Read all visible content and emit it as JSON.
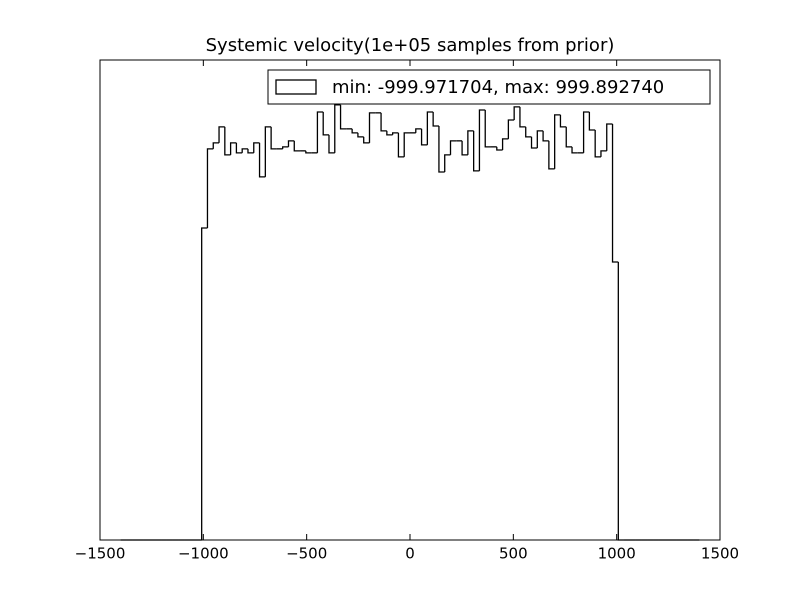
{
  "chart_data": {
    "type": "histogram",
    "title": "Systemic velocity(1e+05 samples from prior)",
    "legend_label": "min: -999.971704, max: 999.892740",
    "legend_position": "upper right",
    "color": "#000000",
    "bins": [
      -1400,
      -1372,
      -1344,
      -1316,
      -1288,
      -1260,
      -1232,
      -1204,
      -1176,
      -1148,
      -1120,
      -1092,
      -1064,
      -1036,
      -1008,
      -980,
      -952,
      -924,
      -896,
      -868,
      -840,
      -812,
      -784,
      -756,
      -728,
      -700,
      -672,
      -644,
      -616,
      -588,
      -560,
      -532,
      -504,
      -476,
      -448,
      -420,
      -392,
      -364,
      -336,
      -308,
      -280,
      -252,
      -224,
      -196,
      -168,
      -140,
      -112,
      -84,
      -56,
      -28,
      0,
      28,
      56,
      84,
      112,
      140,
      168,
      196,
      224,
      252,
      280,
      308,
      336,
      364,
      392,
      420,
      448,
      476,
      504,
      532,
      560,
      588,
      616,
      644,
      672,
      700,
      728,
      756,
      784,
      812,
      840,
      868,
      896,
      924,
      952,
      980,
      1008,
      1036,
      1064,
      1092,
      1120,
      1148,
      1176,
      1204,
      1232,
      1260,
      1288,
      1316,
      1344,
      1372,
      1400
    ],
    "counts": [
      0,
      0,
      0,
      0,
      0,
      0,
      0,
      0,
      0,
      0,
      0,
      0,
      0,
      0,
      1092,
      1369,
      1390,
      1446,
      1348,
      1390,
      1355,
      1369,
      1355,
      1390,
      1271,
      1446,
      1369,
      1369,
      1376,
      1397,
      1362,
      1362,
      1355,
      1355,
      1498,
      1418,
      1355,
      1523,
      1439,
      1439,
      1425,
      1411,
      1390,
      1495,
      1495,
      1432,
      1418,
      1425,
      1341,
      1425,
      1425,
      1439,
      1383,
      1498,
      1449,
      1288,
      1348,
      1397,
      1397,
      1348,
      1432,
      1292,
      1505,
      1376,
      1376,
      1365,
      1404,
      1470,
      1516,
      1446,
      1411,
      1372,
      1432,
      1397,
      1299,
      1488,
      1446,
      1376,
      1355,
      1355,
      1498,
      1435,
      1341,
      1362,
      1456,
      973,
      0,
      0,
      0,
      0,
      0,
      0,
      0,
      0,
      0,
      0,
      0,
      0,
      0,
      0
    ],
    "xlim": [
      -1500,
      1500
    ],
    "ylim": [
      0,
      1680
    ],
    "xticks": [
      {
        "value": -1500,
        "label": "−1500"
      },
      {
        "value": -1000,
        "label": "−1000"
      },
      {
        "value": -500,
        "label": "−500"
      },
      0,
      500,
      1000,
      1500
    ]
  }
}
